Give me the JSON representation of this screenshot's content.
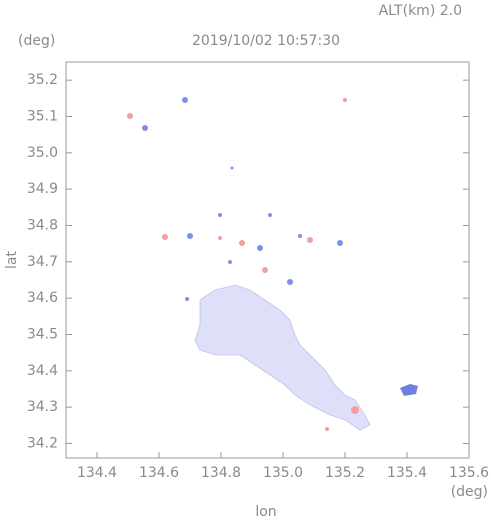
{
  "chart_data": {
    "type": "map",
    "title": "2019/10/02 10:57:30",
    "subtitle": "ALT(km) 2.0",
    "x_label": "lon",
    "x_unit": "(deg)",
    "y_label": "lat",
    "y_unit": "(deg)",
    "xlim": [
      134.3,
      135.6
    ],
    "xticks": [
      134.4,
      134.6,
      134.8,
      {
        "value": 135.0,
        "label": "135.0"
      },
      135.2,
      135.4,
      135.6
    ],
    "ylim": [
      34.16,
      35.25
    ],
    "yticks": [
      34.2,
      34.3,
      34.4,
      34.5,
      34.6,
      34.7,
      34.8,
      34.9,
      {
        "value": 35.0,
        "label": "35.0"
      },
      35.1,
      35.2
    ]
  }
}
